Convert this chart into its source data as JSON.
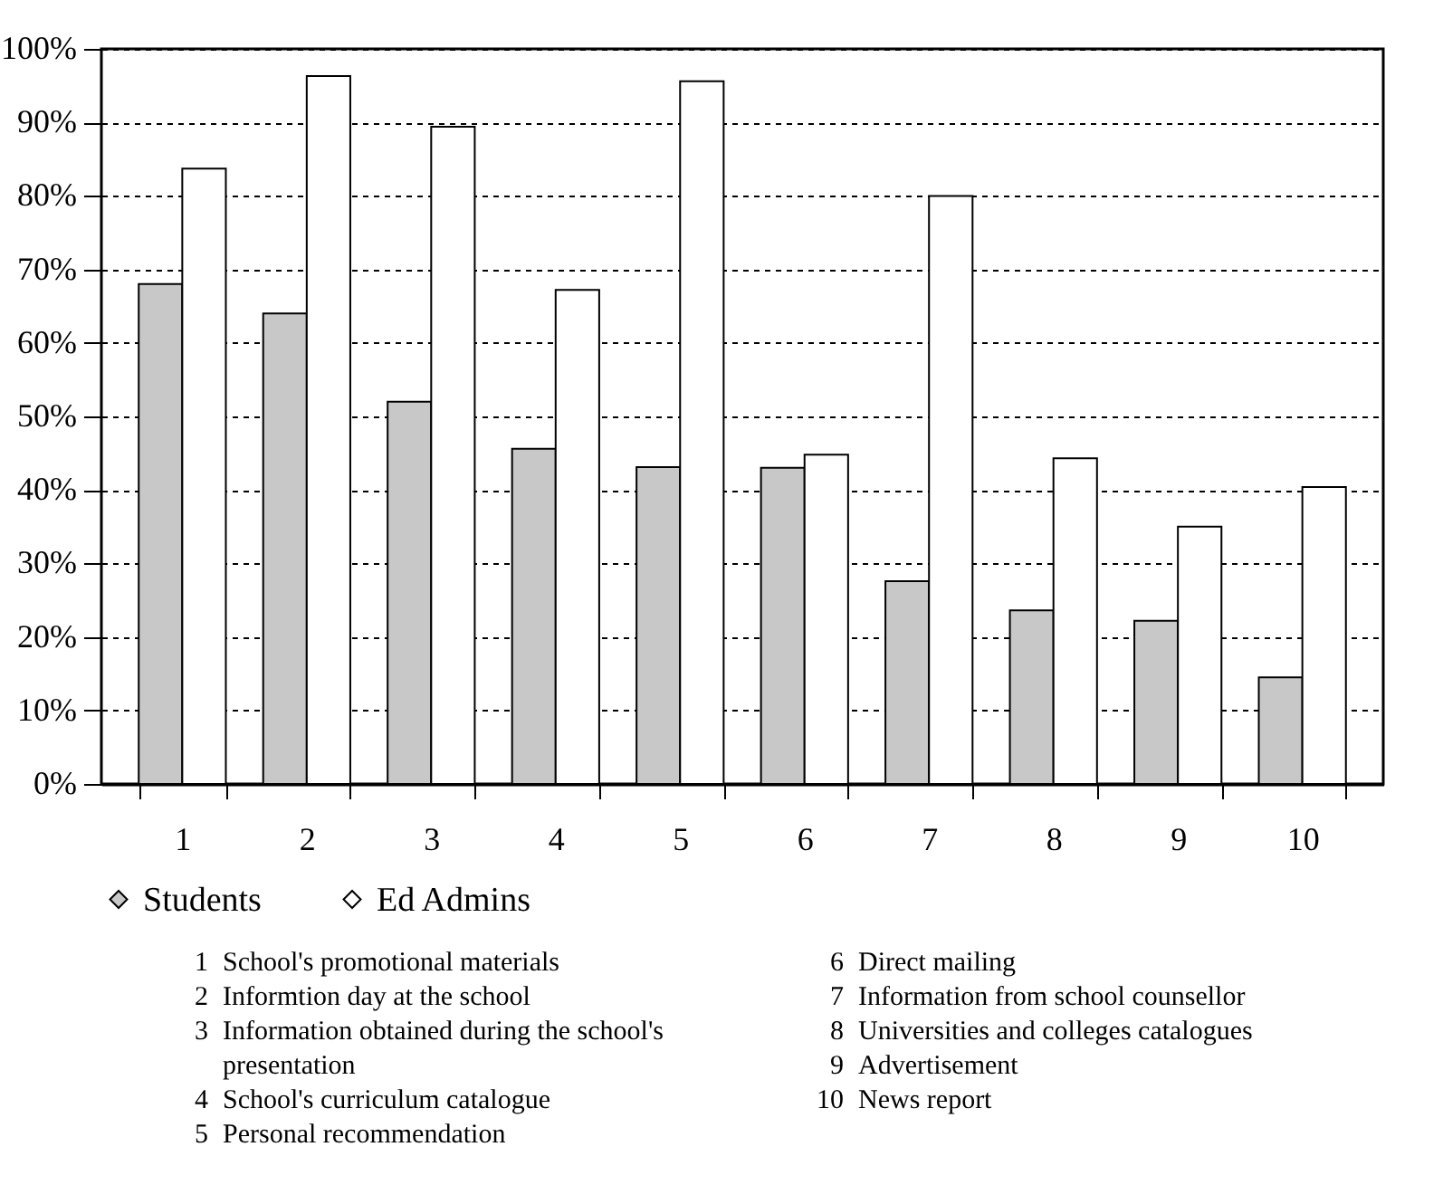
{
  "chart_data": {
    "type": "bar",
    "categories": [
      "1",
      "2",
      "3",
      "4",
      "5",
      "6",
      "7",
      "8",
      "9",
      "10"
    ],
    "series": [
      {
        "name": "Students",
        "color": "#c8c8c8",
        "values": [
          68,
          64,
          52,
          45.6,
          43.1,
          43,
          27.6,
          23.6,
          22.2,
          14.5
        ]
      },
      {
        "name": "Ed Admins",
        "color": "#ffffff",
        "values": [
          83.7,
          96.3,
          89.4,
          67.2,
          95.6,
          44.8,
          80,
          44.3,
          35,
          40.4
        ]
      }
    ],
    "ylim": [
      0,
      100
    ],
    "yticks": [
      {
        "value": 0,
        "label": "0%"
      },
      {
        "value": 10,
        "label": "10%"
      },
      {
        "value": 20,
        "label": "20%"
      },
      {
        "value": 30,
        "label": "30%"
      },
      {
        "value": 40,
        "label": "40%"
      },
      {
        "value": 50,
        "label": "50%"
      },
      {
        "value": 60,
        "label": "60%"
      },
      {
        "value": 70,
        "label": "70%"
      },
      {
        "value": 80,
        "label": "80%"
      },
      {
        "value": 90,
        "label": "90%"
      },
      {
        "value": 100,
        "label": "100%"
      }
    ],
    "grid": "y",
    "legend": "bottom",
    "marker": "diamond",
    "annotations": [
      "1 School's promotional materials",
      "2 Informtion day at the school",
      "3 Information obtained during the school's presentation",
      "4 School's curriculum catalogue",
      "5 Personal recommendation",
      "6 Direct mailing",
      "7 Information from school counsellor",
      "8 Universities and colleges catalogues",
      "9 Advertisement",
      "10 News report"
    ]
  }
}
